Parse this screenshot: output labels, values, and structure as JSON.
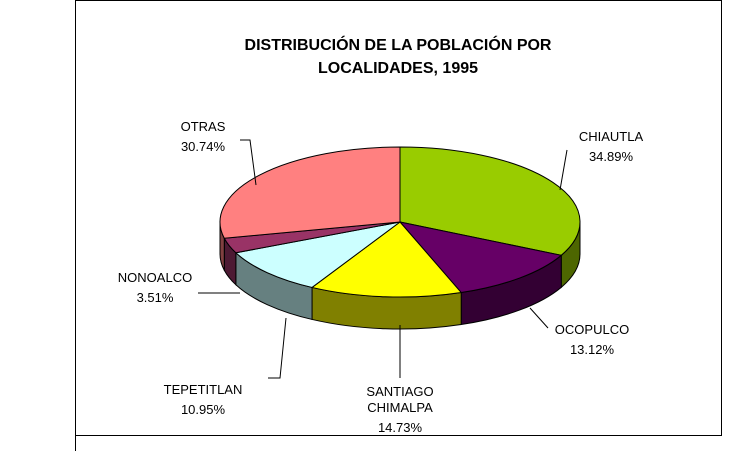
{
  "chart_data": {
    "type": "pie3d",
    "title": "DISTRIBUCIÓN DE LA POBLACIÓN POR LOCALIDADES, 1995",
    "categories": [
      "CHIAUTLA",
      "OCOPULCO",
      "SANTIAGO CHIMALPA",
      "TEPETITLAN",
      "NONOALCO",
      "OTRAS"
    ],
    "values": [
      34.89,
      13.12,
      14.73,
      10.95,
      3.51,
      30.74
    ],
    "value_labels": [
      "34.89%",
      "13.12%",
      "14.73%",
      "10.95%",
      "3.51%",
      "30.74%"
    ],
    "colors": [
      "#99cc00",
      "#660066",
      "#ffff00",
      "#ccffff",
      "#993366",
      "#ff8080"
    ]
  }
}
